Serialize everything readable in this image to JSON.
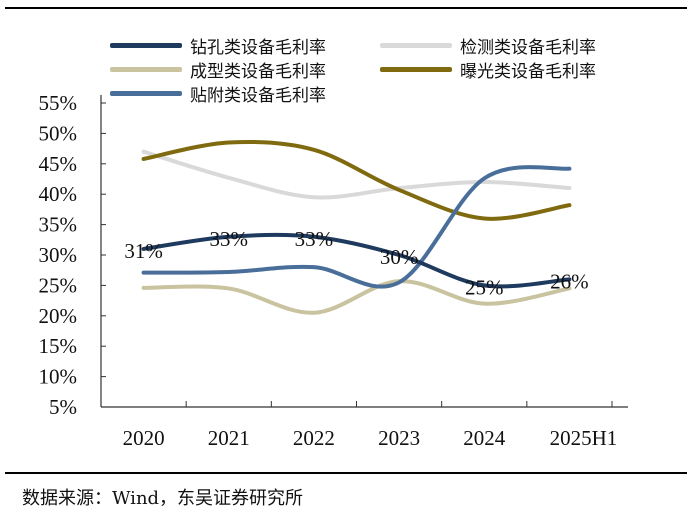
{
  "chart_data": {
    "type": "line",
    "title": "",
    "xlabel": "",
    "ylabel": "",
    "categories": [
      "2020",
      "2021",
      "2022",
      "2023",
      "2024",
      "2025H1"
    ],
    "ylim": [
      5,
      55
    ],
    "yticks": [
      "5%",
      "10%",
      "15%",
      "20%",
      "25%",
      "30%",
      "35%",
      "40%",
      "45%",
      "50%",
      "55%"
    ],
    "legend_position": "top",
    "series": [
      {
        "name": "钻孔类设备毛利率",
        "color": "#1f3a5f",
        "values": [
          31,
          33,
          33,
          30,
          25,
          26
        ],
        "labels": [
          "31%",
          "33%",
          "33%",
          "30%",
          "25%",
          "26%"
        ]
      },
      {
        "name": "检测类设备毛利率",
        "color": "#d9d9d9",
        "values": [
          47,
          42.7,
          39.5,
          41,
          42,
          41
        ]
      },
      {
        "name": "成型类设备毛利率",
        "color": "#c9c3a0",
        "values": [
          24.6,
          24.5,
          20.5,
          25.7,
          22,
          24.5
        ]
      },
      {
        "name": "曝光类设备毛利率",
        "color": "#7f6a0f",
        "values": [
          45.8,
          48.5,
          47.3,
          40.7,
          36,
          38.2
        ]
      },
      {
        "name": "贴附类设备毛利率",
        "color": "#4a6e9a",
        "values": [
          27.1,
          27.2,
          28,
          25.5,
          42.6,
          44.2
        ]
      }
    ]
  },
  "source": "数据来源：Wind，东吴证券研究所"
}
